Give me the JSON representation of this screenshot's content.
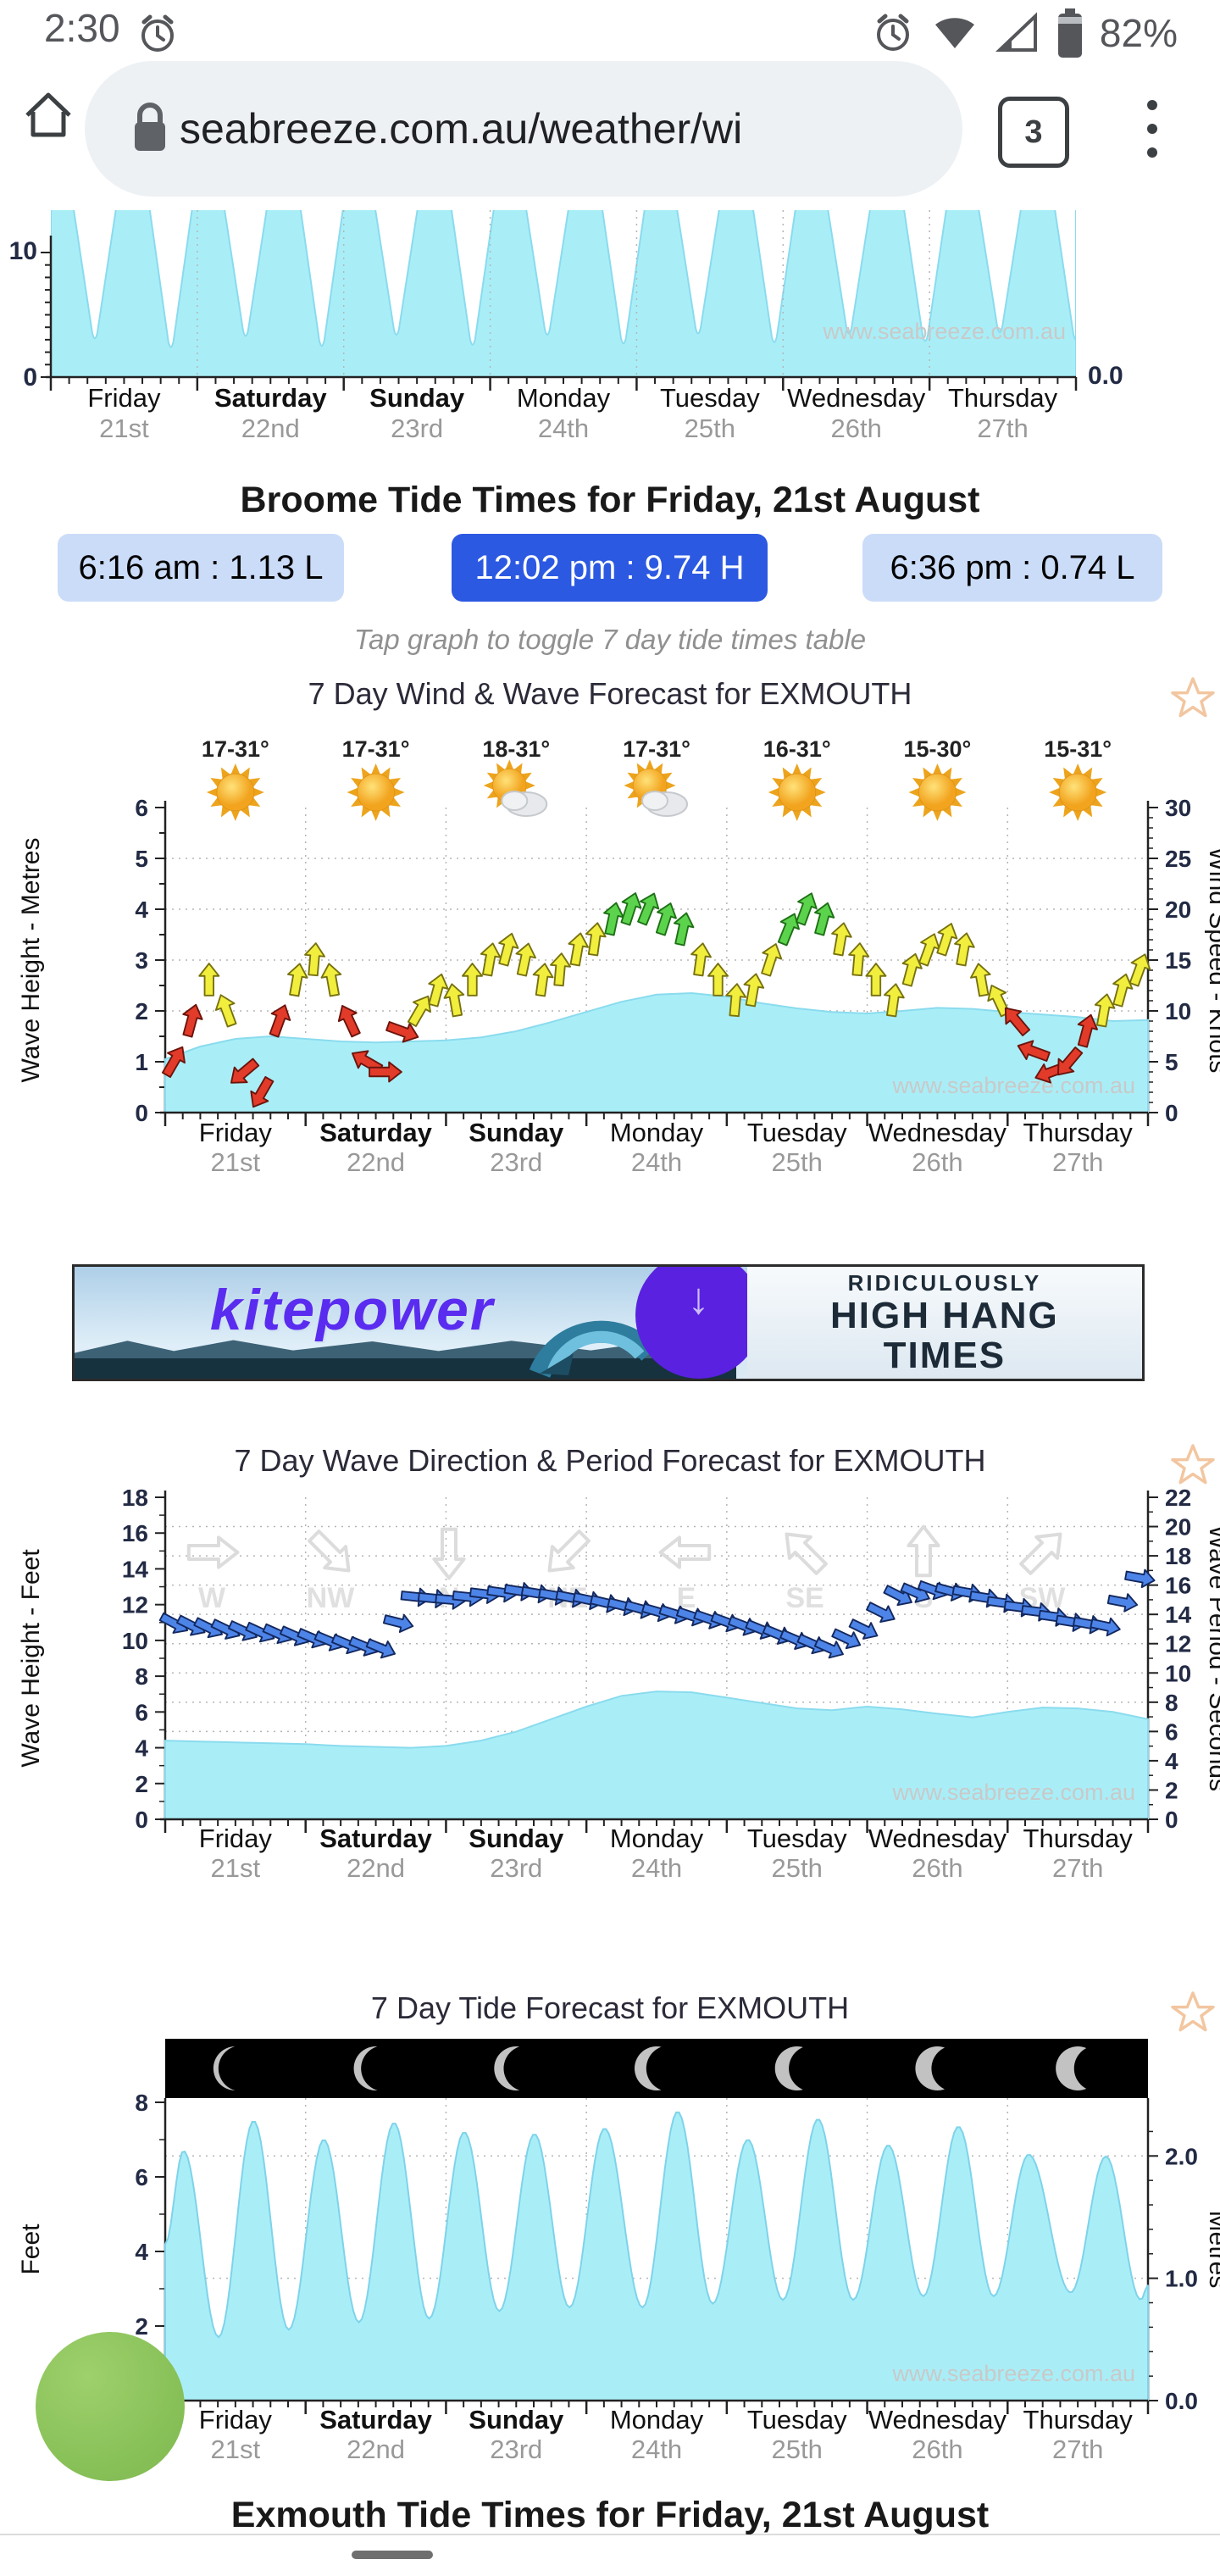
{
  "status_bar": {
    "time": "2:30",
    "battery": "82%"
  },
  "browser": {
    "url": "seabreeze.com.au/weather/wi",
    "tabs": "3"
  },
  "tide_times": {
    "heading": "Broome Tide Times for Friday, 21st August",
    "buttons": [
      {
        "label": "6:16 am : 1.13 L",
        "selected": false
      },
      {
        "label": "12:02 pm : 9.74 H",
        "selected": true
      },
      {
        "label": "6:36 pm : 0.74 L",
        "selected": false
      }
    ],
    "note": "Tap graph to toggle 7 day tide times table"
  },
  "banner": {
    "brand": "kitepower",
    "arrow": "↓",
    "lines": [
      "RIDICULOUSLY",
      "HIGH HANG",
      "TIMES"
    ]
  },
  "bottom_heading": "Exmouth Tide Times for Friday, 21st August",
  "watermark": "www.seabreeze.com.au",
  "days": [
    {
      "name": "Friday",
      "date": "21st",
      "weekend": false
    },
    {
      "name": "Saturday",
      "date": "22nd",
      "weekend": true
    },
    {
      "name": "Sunday",
      "date": "23rd",
      "weekend": true
    },
    {
      "name": "Monday",
      "date": "24th",
      "weekend": false
    },
    {
      "name": "Tuesday",
      "date": "25th",
      "weekend": false
    },
    {
      "name": "Wednesday",
      "date": "26th",
      "weekend": false
    },
    {
      "name": "Thursday",
      "date": "27th",
      "weekend": false
    }
  ],
  "chart_data": [
    {
      "id": "broome_tide",
      "type": "area",
      "title": "",
      "ylim_left": [
        0,
        10
      ],
      "yticks_shown": [
        "10",
        "0"
      ],
      "right_tick": "0.0",
      "note": "partial tide chart cut by viewport top, two low-tide notches per day",
      "trough_t": [
        0.3,
        0.82,
        1.33,
        1.85,
        2.36,
        2.88,
        3.39,
        3.91,
        4.42,
        4.94,
        5.45,
        5.97,
        6.48,
        7.0
      ],
      "trough_depth_m": [
        3.0,
        2.3,
        3.2,
        2.4,
        3.3,
        2.5,
        3.3,
        2.6,
        3.4,
        2.7,
        3.4,
        2.8,
        3.5,
        2.9
      ]
    },
    {
      "id": "wind_wave",
      "type": "area+wind-arrows",
      "title": "7 Day Wind & Wave Forecast for EXMOUTH",
      "temps": [
        "17-31°",
        "17-31°",
        "18-31°",
        "17-31°",
        "16-31°",
        "15-30°",
        "15-31°"
      ],
      "sky": [
        "sunny",
        "sunny",
        "partly",
        "partly",
        "sunny",
        "sunny",
        "sunny"
      ],
      "ylabel_left": "Wave Height - Metres",
      "ylim_left": [
        0,
        6
      ],
      "yticks_left": [
        0,
        1,
        2,
        3,
        4,
        5,
        6
      ],
      "ylabel_right": "Wind Speed - Knots",
      "ylim_right": [
        0,
        30
      ],
      "yticks_right": [
        0,
        5,
        10,
        15,
        20,
        25,
        30
      ],
      "color_thresholds": {
        "red_below_kn": 9.5,
        "green_above_kn": 17.5
      },
      "wind_knots": [
        5,
        9,
        13,
        10,
        4,
        2,
        9,
        13,
        15,
        13,
        9,
        5,
        4,
        8,
        10,
        12,
        11,
        13,
        15,
        16,
        15,
        13,
        14,
        16,
        17,
        19,
        20,
        20,
        19,
        18,
        15,
        13,
        11,
        12,
        15,
        18,
        20,
        19,
        17,
        15,
        13,
        11,
        14,
        16,
        17,
        16,
        13,
        11,
        9,
        6,
        4,
        5,
        8,
        10,
        12,
        14
      ],
      "wind_dir_deg": [
        30,
        15,
        0,
        340,
        230,
        210,
        20,
        10,
        5,
        350,
        335,
        300,
        90,
        110,
        30,
        15,
        350,
        0,
        10,
        15,
        12,
        8,
        5,
        10,
        8,
        12,
        18,
        22,
        18,
        12,
        8,
        0,
        5,
        10,
        18,
        22,
        20,
        15,
        10,
        5,
        0,
        8,
        15,
        20,
        18,
        10,
        350,
        335,
        320,
        290,
        250,
        220,
        15,
        10,
        15,
        20
      ],
      "wave_height_m": [
        1.05,
        1.3,
        1.45,
        1.5,
        1.45,
        1.4,
        1.38,
        1.4,
        1.42,
        1.48,
        1.6,
        1.78,
        1.98,
        2.18,
        2.32,
        2.35,
        2.28,
        2.15,
        2.05,
        1.98,
        1.95,
        2.0,
        2.06,
        2.04,
        1.98,
        1.93,
        1.88,
        1.8,
        1.82
      ]
    },
    {
      "id": "wave_period",
      "type": "area+arrows",
      "title": "7 Day Wave Direction & Period Forecast for EXMOUTH",
      "ylabel_left": "Wave Height - Feet",
      "ylim_left": [
        0,
        18
      ],
      "yticks_left": [
        0,
        2,
        4,
        6,
        8,
        10,
        12,
        14,
        16,
        18
      ],
      "ylabel_right": "Wave Period - Seconds",
      "ylim_right": [
        0,
        22
      ],
      "yticks_right": [
        0,
        2,
        4,
        6,
        8,
        10,
        12,
        14,
        16,
        18,
        20,
        22
      ],
      "ghost_dirs": [
        {
          "deg": 90,
          "label": "W"
        },
        {
          "deg": 135,
          "label": "NW"
        },
        {
          "deg": 180,
          "label": "N"
        },
        {
          "deg": 225,
          "label": "NE"
        },
        {
          "deg": 270,
          "label": "E"
        },
        {
          "deg": 315,
          "label": "SE"
        },
        {
          "deg": 0,
          "label": "S"
        },
        {
          "deg": 45,
          "label": "SW"
        }
      ],
      "period_s": [
        13.4,
        13.1,
        12.9,
        12.7,
        12.4,
        12.0,
        11.7,
        15.2,
        15.0,
        15.4,
        15.6,
        15.3,
        15.0,
        14.6,
        14.2,
        13.9,
        13.5,
        13.0,
        12.3,
        11.7,
        13.0,
        15.3,
        15.7,
        15.5,
        14.8,
        14.2,
        13.5,
        13.2,
        16.5
      ],
      "period_dir_deg": [
        118,
        116,
        115,
        114,
        113,
        112,
        112,
        96,
        95,
        97,
        99,
        100,
        102,
        104,
        106,
        108,
        110,
        112,
        113,
        114,
        116,
        117,
        110,
        100,
        98,
        97,
        99,
        102,
        100
      ],
      "wave_height_ft": [
        4.4,
        4.35,
        4.3,
        4.25,
        4.2,
        4.1,
        4.05,
        4.0,
        4.1,
        4.4,
        4.9,
        5.6,
        6.3,
        6.9,
        7.15,
        7.1,
        6.8,
        6.5,
        6.2,
        6.1,
        6.3,
        6.15,
        5.9,
        5.7,
        6.0,
        6.25,
        6.2,
        6.0,
        5.6
      ]
    },
    {
      "id": "exmouth_tide",
      "type": "area",
      "title": "7 Day Tide Forecast for EXMOUTH",
      "ylabel_left": "Feet",
      "ylim_left": [
        0,
        8
      ],
      "yticks_left": [
        0,
        2,
        4,
        6,
        8
      ],
      "ylabel_right": "Metres",
      "yticks_right": [
        "2.0",
        "1.0",
        "0.0"
      ],
      "moon_phase": "waxing crescent, growing left-lit, one per day",
      "tide_extrema_t_ft": [
        [
          0,
          4.2
        ],
        [
          0.13,
          6.7
        ],
        [
          0.38,
          1.7
        ],
        [
          0.63,
          7.5
        ],
        [
          0.88,
          1.9
        ],
        [
          1.13,
          7.0
        ],
        [
          1.38,
          2.1
        ],
        [
          1.63,
          7.45
        ],
        [
          1.88,
          2.2
        ],
        [
          2.13,
          7.2
        ],
        [
          2.38,
          2.4
        ],
        [
          2.63,
          7.15
        ],
        [
          2.88,
          2.5
        ],
        [
          3.13,
          7.3
        ],
        [
          3.4,
          2.5
        ],
        [
          3.65,
          7.75
        ],
        [
          3.9,
          2.6
        ],
        [
          4.15,
          7.0
        ],
        [
          4.4,
          2.7
        ],
        [
          4.65,
          7.55
        ],
        [
          4.9,
          2.7
        ],
        [
          5.15,
          6.85
        ],
        [
          5.4,
          2.8
        ],
        [
          5.65,
          7.35
        ],
        [
          5.9,
          2.8
        ],
        [
          6.15,
          6.6
        ],
        [
          6.45,
          2.9
        ],
        [
          6.7,
          6.55
        ],
        [
          6.95,
          2.7
        ],
        [
          7.0,
          3.1
        ]
      ]
    }
  ]
}
